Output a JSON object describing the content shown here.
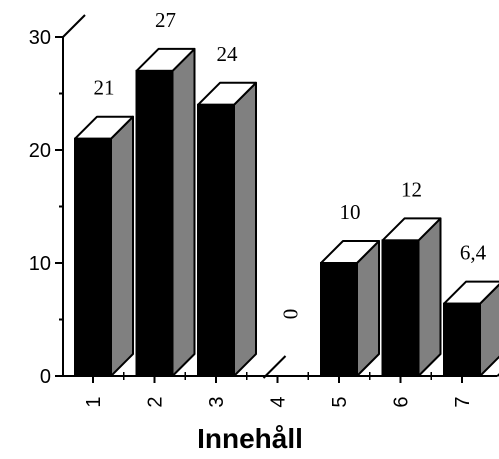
{
  "chart_data": {
    "type": "bar",
    "categories": [
      "1",
      "2",
      "3",
      "4",
      "5",
      "6",
      "7"
    ],
    "values": [
      21,
      27,
      24,
      0,
      10,
      12,
      6.4
    ],
    "data_labels": [
      "21",
      "27",
      "24",
      "0",
      "10",
      "12",
      "6,4"
    ],
    "xlabel": "Innehåll",
    "ylabel": "",
    "ylim": [
      0,
      30
    ],
    "yticks": [
      "0",
      "10",
      "20",
      "30"
    ],
    "style": "3d",
    "grid": false,
    "colors": {
      "front": "#000000",
      "side": "#808080",
      "top": "#ffffff"
    }
  }
}
